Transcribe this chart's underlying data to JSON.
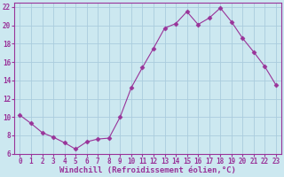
{
  "x": [
    0,
    1,
    2,
    3,
    4,
    5,
    6,
    7,
    8,
    9,
    10,
    11,
    12,
    13,
    14,
    15,
    16,
    17,
    18,
    19,
    20,
    21,
    22,
    23
  ],
  "y": [
    10.2,
    9.3,
    8.3,
    7.8,
    7.2,
    6.5,
    7.3,
    7.6,
    7.7,
    10.0,
    13.2,
    15.4,
    17.5,
    19.7,
    20.2,
    21.5,
    20.1,
    20.8,
    21.9,
    20.4,
    18.6,
    17.1,
    15.5,
    13.5
  ],
  "line_color": "#993399",
  "marker": "D",
  "marker_size": 2.5,
  "bg_color": "#cce8f0",
  "grid_color": "#aaccdd",
  "xlabel": "Windchill (Refroidissement éolien,°C)",
  "xlim": [
    -0.5,
    23.5
  ],
  "ylim": [
    6,
    22.5
  ],
  "yticks": [
    6,
    8,
    10,
    12,
    14,
    16,
    18,
    20,
    22
  ],
  "xticks": [
    0,
    1,
    2,
    3,
    4,
    5,
    6,
    7,
    8,
    9,
    10,
    11,
    12,
    13,
    14,
    15,
    16,
    17,
    18,
    19,
    20,
    21,
    22,
    23
  ],
  "tick_color": "#993399",
  "label_color": "#993399",
  "label_fontsize": 6.5,
  "tick_fontsize": 5.5,
  "font_family": "monospace"
}
